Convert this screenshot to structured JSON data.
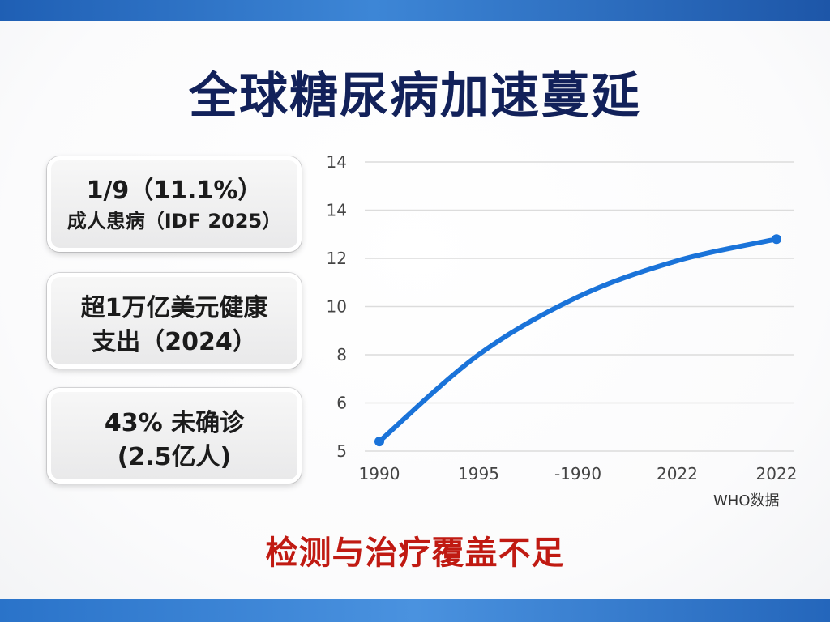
{
  "title": "全球糖尿病加速蔓延",
  "cards": [
    {
      "line1": "1/9（11.1%）",
      "line2": "成人患病（IDF 2025）"
    },
    {
      "line1": "超1万亿美元健康",
      "line2": "支出（2024）"
    },
    {
      "line1": "43% 未确诊",
      "line2": "(2.5亿人)"
    }
  ],
  "chart_data": {
    "type": "line",
    "title": "",
    "xlabel": "",
    "ylabel": "",
    "x": [
      "1990",
      "1995",
      "-1990",
      "2022",
      "2022"
    ],
    "y_ticks": [
      "14",
      "14",
      "12",
      "10",
      "8",
      "6",
      "5"
    ],
    "series": [
      {
        "values": [
          5.2,
          8.0,
          10.4,
          11.9,
          12.8
        ],
        "color": "#1a73d9"
      }
    ],
    "grid": true,
    "source_note": "WHO数据"
  },
  "footer": "检测与治疗覆盖不足"
}
